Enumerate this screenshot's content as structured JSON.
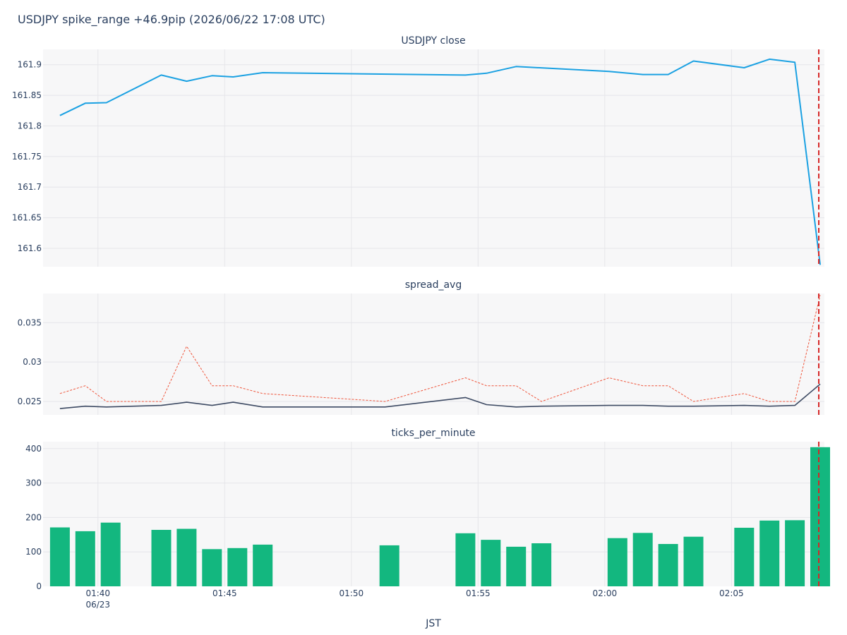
{
  "figure_title": "USDJPY spike_range +46.9pip (2026/06/22 17:08 UTC)",
  "x_axis_title": "JST",
  "x_ticks": [
    "01:40",
    "01:45",
    "01:50",
    "01:55",
    "02:00",
    "02:05"
  ],
  "x_date_label": "06/23",
  "x_range": [
    "01:37:50",
    "02:08:40"
  ],
  "event_time": "02:08",
  "colors": {
    "close_line": "#1ba1e2",
    "spread_solid": "#3d4a63",
    "spread_dotted": "#ef553b",
    "bars": "#13b77f",
    "event_line": "#d62728",
    "panel_bg": "#f7f7f8",
    "grid": "#e6e6ea"
  },
  "chart_data": [
    {
      "type": "line",
      "title": "USDJPY close",
      "ylim": [
        161.57,
        161.925
      ],
      "yticks": [
        "161.6",
        "161.65",
        "161.7",
        "161.75",
        "161.8",
        "161.85",
        "161.9"
      ],
      "grid": true,
      "x": [
        "01:38:30",
        "01:39:30",
        "01:40:20",
        "01:42:30",
        "01:43:30",
        "01:44:30",
        "01:45:20",
        "01:46:30",
        "01:54:30",
        "01:55:20",
        "01:56:30",
        "02:00:10",
        "02:01:30",
        "02:02:30",
        "02:03:30",
        "02:05:30",
        "02:06:30",
        "02:07:30",
        "02:08:30"
      ],
      "series": [
        {
          "values": [
            161.817,
            161.837,
            161.838,
            161.883,
            161.873,
            161.882,
            161.88,
            161.887,
            161.883,
            161.886,
            161.897,
            161.889,
            161.884,
            161.884,
            161.906,
            161.895,
            161.909,
            161.904,
            161.573
          ]
        }
      ]
    },
    {
      "type": "line",
      "title": "spread_avg",
      "ylim": [
        0.0233,
        0.0387
      ],
      "yticks": [
        "0.025",
        "0.03",
        "0.035"
      ],
      "grid": true,
      "x": [
        "01:38:30",
        "01:39:30",
        "01:40:20",
        "01:42:30",
        "01:43:30",
        "01:44:30",
        "01:45:20",
        "01:46:30",
        "01:51:20",
        "01:54:30",
        "01:55:20",
        "01:56:30",
        "01:57:30",
        "02:00:10",
        "02:01:30",
        "02:02:30",
        "02:03:30",
        "02:05:30",
        "02:06:30",
        "02:07:30",
        "02:08:30"
      ],
      "series": [
        {
          "style": "dotted",
          "values": [
            0.026,
            0.027,
            0.025,
            0.025,
            0.032,
            0.027,
            0.027,
            0.026,
            0.025,
            0.028,
            0.027,
            0.027,
            0.025,
            0.028,
            0.027,
            0.027,
            0.025,
            0.026,
            0.025,
            0.025,
            0.0385
          ]
        },
        {
          "style": "solid",
          "values": [
            0.0241,
            0.0244,
            0.0243,
            0.0245,
            0.0249,
            0.0245,
            0.0249,
            0.0243,
            0.0243,
            0.0255,
            0.0246,
            0.0243,
            0.0244,
            0.0245,
            0.0245,
            0.0244,
            0.0244,
            0.0245,
            0.0244,
            0.0245,
            0.0272
          ]
        }
      ]
    },
    {
      "type": "bar",
      "title": "ticks_per_minute",
      "ylim": [
        0,
        420
      ],
      "yticks": [
        "0",
        "100",
        "200",
        "300",
        "400"
      ],
      "grid": true,
      "categories": [
        "01:38",
        "01:39",
        "01:40",
        "01:42",
        "01:43",
        "01:44",
        "01:45",
        "01:46",
        "01:51",
        "01:54",
        "01:55",
        "01:56",
        "01:57",
        "02:00",
        "02:01",
        "02:02",
        "02:03",
        "02:05",
        "02:06",
        "02:07",
        "02:08"
      ],
      "values": [
        171,
        160,
        185,
        164,
        167,
        108,
        111,
        121,
        119,
        154,
        135,
        115,
        125,
        140,
        155,
        123,
        144,
        170,
        191,
        192,
        404
      ]
    }
  ]
}
